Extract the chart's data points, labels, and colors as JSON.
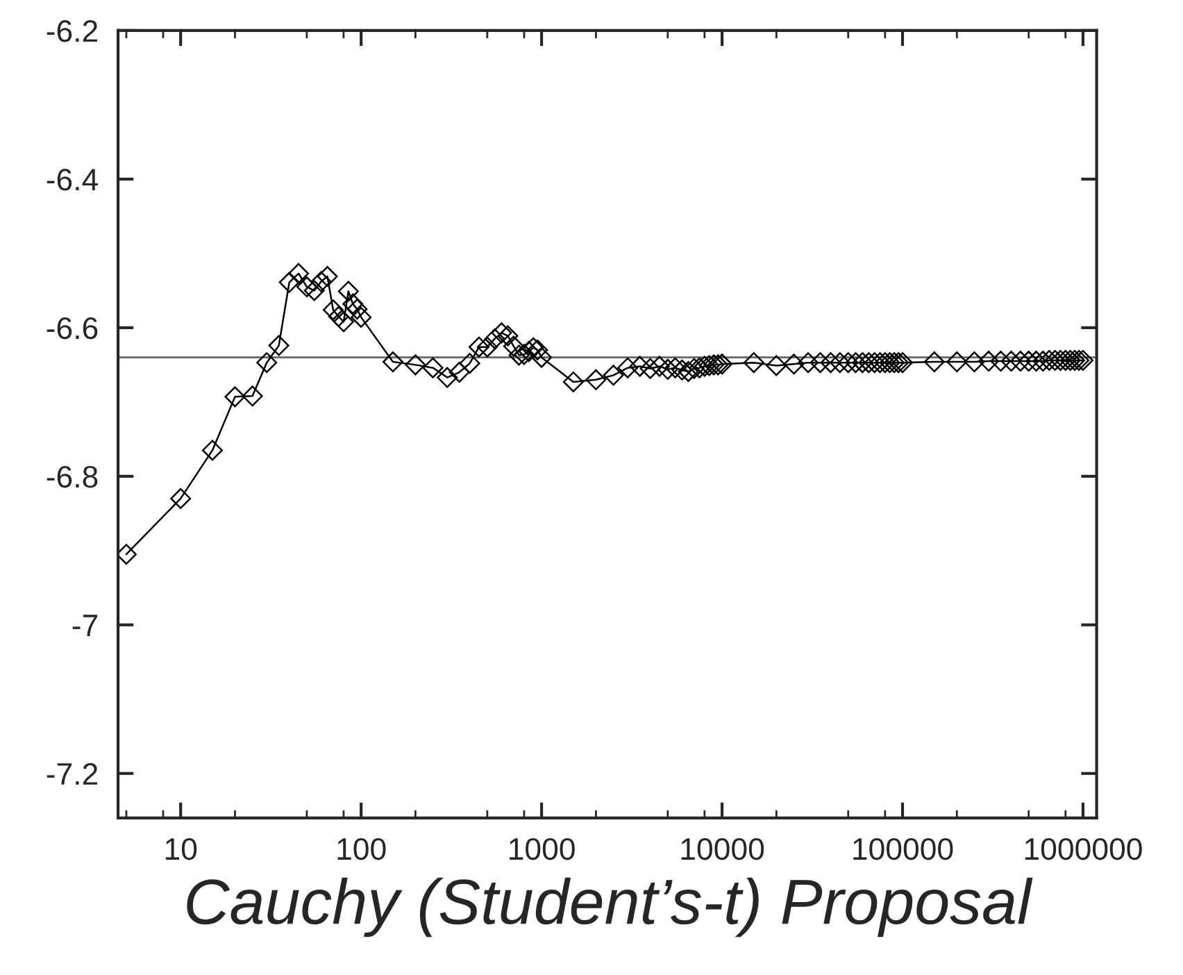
{
  "chart_data": {
    "type": "line",
    "xlabel": "Cauchy (Student’s-t) Proposal",
    "x": [
      5,
      10,
      15,
      20,
      25,
      30,
      35,
      40,
      45,
      50,
      55,
      60,
      65,
      70,
      75,
      80,
      85,
      90,
      95,
      100,
      150,
      200,
      250,
      300,
      350,
      400,
      450,
      500,
      550,
      600,
      650,
      700,
      750,
      800,
      850,
      900,
      950,
      1000,
      1500,
      2000,
      2500,
      3000,
      3500,
      4000,
      4500,
      5000,
      5500,
      6000,
      6500,
      7000,
      7500,
      8000,
      8500,
      9000,
      9500,
      10000,
      15000,
      20000,
      25000,
      30000,
      35000,
      40000,
      45000,
      50000,
      55000,
      60000,
      65000,
      70000,
      75000,
      80000,
      85000,
      90000,
      95000,
      100000,
      150000,
      200000,
      250000,
      300000,
      350000,
      400000,
      450000,
      500000,
      550000,
      600000,
      650000,
      700000,
      750000,
      800000,
      850000,
      900000,
      950000,
      1000000
    ],
    "series": [
      {
        "color": "#000000",
        "values": [
          -6.905,
          -6.83,
          -6.765,
          -6.693,
          -6.692,
          -6.647,
          -6.624,
          -6.539,
          -6.527,
          -6.545,
          -6.55,
          -6.538,
          -6.531,
          -6.576,
          -6.585,
          -6.592,
          -6.551,
          -6.568,
          -6.575,
          -6.586,
          -6.646,
          -6.65,
          -6.654,
          -6.667,
          -6.66,
          -6.648,
          -6.626,
          -6.626,
          -6.615,
          -6.607,
          -6.611,
          -6.625,
          -6.637,
          -6.636,
          -6.632,
          -6.627,
          -6.63,
          -6.64,
          -6.673,
          -6.67,
          -6.664,
          -6.654,
          -6.652,
          -6.655,
          -6.652,
          -6.656,
          -6.654,
          -6.657,
          -6.659,
          -6.655,
          -6.654,
          -6.652,
          -6.651,
          -6.65,
          -6.65,
          -6.649,
          -6.647,
          -6.651,
          -6.649,
          -6.647,
          -6.647,
          -6.647,
          -6.647,
          -6.647,
          -6.647,
          -6.647,
          -6.647,
          -6.647,
          -6.647,
          -6.647,
          -6.647,
          -6.647,
          -6.647,
          -6.647,
          -6.646,
          -6.646,
          -6.646,
          -6.645,
          -6.645,
          -6.645,
          -6.645,
          -6.645,
          -6.645,
          -6.645,
          -6.644,
          -6.644,
          -6.644,
          -6.644,
          -6.644,
          -6.644,
          -6.644,
          -6.644
        ]
      }
    ],
    "ref_lines": [
      {
        "axis": "y",
        "value": -6.64,
        "color": "#666666"
      }
    ],
    "log": "x",
    "xlim": [
      4.5,
      1190000
    ],
    "xticks": [
      10,
      100,
      1000,
      10000,
      100000,
      1000000
    ],
    "ylim": [
      -7.26,
      -6.2
    ],
    "yticks": [
      -7.2,
      -7,
      -6.8,
      -6.6,
      -6.4,
      -6.2
    ],
    "marker": "diamond",
    "line_style": "solid",
    "grid": false
  }
}
